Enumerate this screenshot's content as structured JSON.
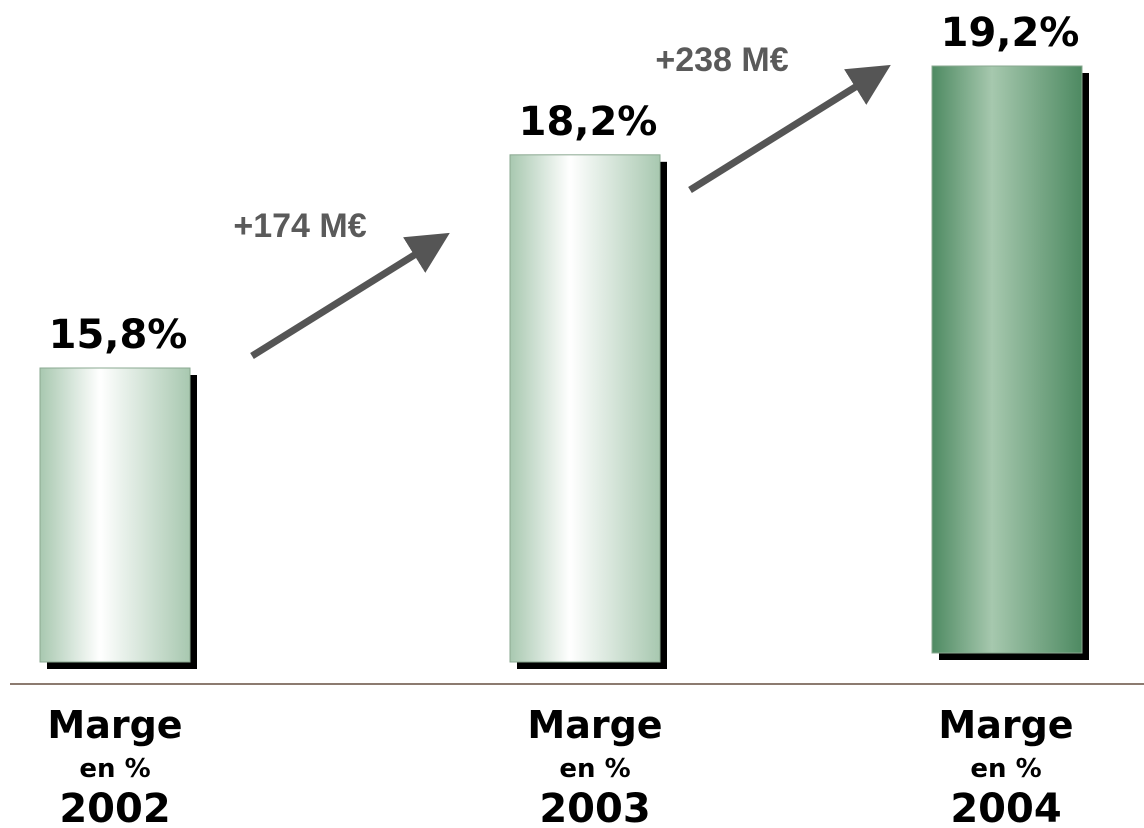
{
  "chart_data": {
    "type": "bar",
    "title": "",
    "xlabel": "",
    "ylabel": "",
    "ylim": [
      0,
      20
    ],
    "grid": false,
    "categories": [
      "2002",
      "2003",
      "2004"
    ],
    "category_labels": [
      {
        "line1": "Marge",
        "line2": "en %",
        "year": "2002"
      },
      {
        "line1": "Marge",
        "line2": "en %",
        "year": "2003"
      },
      {
        "line1": "Marge",
        "line2": "en %",
        "year": "2004"
      }
    ],
    "values": [
      15.8,
      18.2,
      19.2
    ],
    "value_labels": [
      "15,8%",
      "18,2%",
      "19,2%"
    ],
    "annotations": [
      {
        "from": "2002",
        "to": "2003",
        "text": "+174 M€"
      },
      {
        "from": "2003",
        "to": "2004",
        "text": "+238 M€"
      }
    ],
    "colors": {
      "bar_light_edge": "#a8c8b0",
      "bar_light_center": "#ffffff",
      "bar_dark_edge": "#4e8a62",
      "bar_dark_center": "#a6c8ae",
      "shadow": "#000000",
      "arrow": "#555555",
      "baseline": "#8c7b70"
    }
  }
}
